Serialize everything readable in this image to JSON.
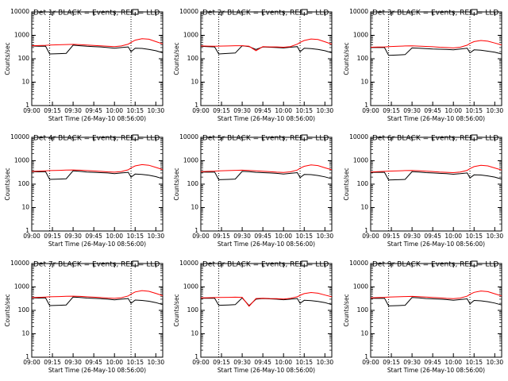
{
  "chart_data": {
    "type": "line",
    "y_scale": "log",
    "ylim": [
      1,
      10000
    ],
    "xlim": [
      "09:00",
      "10:35"
    ],
    "ylabel": "Counts/sec",
    "xlabel": "Start Time (26-May-10 08:56:00)",
    "x_tick_labels": [
      "09:00",
      "09:15",
      "09:30",
      "09:45",
      "10:00",
      "10:15",
      "10:30"
    ],
    "y_tick_labels": [
      "1",
      "10",
      "100",
      "1000",
      "10000"
    ],
    "vertical_markers": [
      "09:13",
      "10:12"
    ],
    "colors": {
      "events": "#000000",
      "lld": "#ff0000",
      "markers": "#000000"
    },
    "x_times": [
      "09:00",
      "09:05",
      "09:10",
      "09:13",
      "09:20",
      "09:25",
      "09:30",
      "09:35",
      "09:40",
      "09:45",
      "09:50",
      "09:55",
      "10:00",
      "10:05",
      "10:10",
      "10:12",
      "10:15",
      "10:20",
      "10:25",
      "10:30",
      "10:35"
    ],
    "panels": [
      {
        "title": "Det 1r BLACK = Events, RED = LLD",
        "series": [
          {
            "name": "Events",
            "color": "#000000",
            "values": [
              350,
              340,
              345,
              160,
              165,
              170,
              380,
              360,
              340,
              330,
              320,
              300,
              280,
              300,
              320,
              200,
              280,
              275,
              250,
              220,
              180
            ]
          },
          {
            "name": "LLD",
            "color": "#ff0000",
            "values": [
              360,
              365,
              375,
              385,
              395,
              405,
              410,
              400,
              385,
              370,
              355,
              340,
              330,
              350,
              420,
              500,
              620,
              720,
              680,
              540,
              430
            ]
          }
        ]
      },
      {
        "title": "Det 2r BLACK = Events, RED = LLD",
        "series": [
          {
            "name": "Events",
            "color": "#000000",
            "values": [
              340,
              330,
              320,
              160,
              170,
              175,
              360,
              330,
              250,
              320,
              310,
              300,
              290,
              310,
              330,
              200,
              280,
              270,
              250,
              220,
              180
            ]
          },
          {
            "name": "LLD",
            "color": "#ff0000",
            "values": [
              350,
              345,
              340,
              345,
              350,
              360,
              360,
              340,
              220,
              330,
              320,
              320,
              310,
              330,
              420,
              500,
              600,
              700,
              660,
              530,
              420
            ]
          }
        ]
      },
      {
        "title": "Det 3r BLACK = Events, RED = LLD",
        "series": [
          {
            "name": "Events",
            "color": "#000000",
            "values": [
              300,
              300,
              300,
              140,
              145,
              150,
              290,
              280,
              270,
              260,
              255,
              250,
              240,
              260,
              280,
              180,
              240,
              230,
              210,
              190,
              160
            ]
          },
          {
            "name": "LLD",
            "color": "#ff0000",
            "values": [
              310,
              315,
              320,
              330,
              340,
              350,
              355,
              345,
              335,
              325,
              310,
              300,
              290,
              310,
              380,
              450,
              540,
              600,
              560,
              470,
              390
            ]
          }
        ]
      },
      {
        "title": "Det 4r BLACK = Events, RED = LLD",
        "series": [
          {
            "name": "Events",
            "color": "#000000",
            "values": [
              340,
              335,
              340,
              160,
              165,
              170,
              370,
              350,
              330,
              320,
              310,
              300,
              280,
              300,
              320,
              200,
              270,
              260,
              240,
              210,
              170
            ]
          },
          {
            "name": "LLD",
            "color": "#ff0000",
            "values": [
              350,
              360,
              370,
              380,
              390,
              400,
              405,
              395,
              380,
              365,
              350,
              335,
              325,
              345,
              410,
              490,
              600,
              680,
              640,
              520,
              420
            ]
          }
        ]
      },
      {
        "title": "Det 5r BLACK = Events, RED = LLD",
        "series": [
          {
            "name": "Events",
            "color": "#000000",
            "values": [
              330,
              325,
              330,
              155,
              160,
              165,
              350,
              340,
              320,
              310,
              300,
              290,
              270,
              290,
              310,
              190,
              260,
              255,
              235,
              205,
              170
            ]
          },
          {
            "name": "LLD",
            "color": "#ff0000",
            "values": [
              340,
              350,
              360,
              370,
              380,
              390,
              395,
              385,
              370,
              355,
              340,
              325,
              315,
              335,
              400,
              480,
              580,
              660,
              620,
              500,
              410
            ]
          }
        ]
      },
      {
        "title": "Det 6r BLACK = Events, RED = LLD",
        "series": [
          {
            "name": "Events",
            "color": "#000000",
            "values": [
              320,
              320,
              320,
              150,
              155,
              160,
              340,
              330,
              310,
              300,
              290,
              280,
              265,
              280,
              300,
              185,
              250,
              245,
              225,
              200,
              165
            ]
          },
          {
            "name": "LLD",
            "color": "#ff0000",
            "values": [
              330,
              340,
              350,
              360,
              370,
              380,
              385,
              375,
              360,
              345,
              330,
              320,
              310,
              330,
              390,
              460,
              560,
              640,
              600,
              490,
              400
            ]
          }
        ]
      },
      {
        "title": "Det 7r BLACK = Events, RED = LLD",
        "series": [
          {
            "name": "Events",
            "color": "#000000",
            "values": [
              340,
              335,
              340,
              160,
              165,
              170,
              370,
              355,
              335,
              325,
              315,
              300,
              280,
              300,
              320,
              200,
              275,
              265,
              245,
              215,
              175
            ]
          },
          {
            "name": "LLD",
            "color": "#ff0000",
            "values": [
              350,
              360,
              370,
              380,
              390,
              400,
              405,
              395,
              380,
              365,
              350,
              335,
              325,
              345,
              415,
              495,
              610,
              700,
              650,
              530,
              425
            ]
          }
        ]
      },
      {
        "title": "Det 8r BLACK = Events, RED = LLD",
        "series": [
          {
            "name": "Events",
            "color": "#000000",
            "values": [
              330,
              330,
              330,
              165,
              170,
              175,
              340,
              160,
              300,
              320,
              310,
              300,
              285,
              300,
              320,
              200,
              270,
              260,
              240,
              215,
              175
            ]
          },
          {
            "name": "LLD",
            "color": "#ff0000",
            "values": [
              340,
              345,
              350,
              355,
              360,
              365,
              360,
              150,
              320,
              330,
              320,
              315,
              305,
              325,
              380,
              440,
              520,
              580,
              540,
              450,
              380
            ]
          }
        ]
      },
      {
        "title": "Det 9r BLACK = Events, RED = LLD",
        "series": [
          {
            "name": "Events",
            "color": "#000000",
            "values": [
              330,
              325,
              330,
              155,
              160,
              165,
              355,
              340,
              320,
              310,
              300,
              290,
              270,
              290,
              310,
              190,
              265,
              255,
              235,
              205,
              170
            ]
          },
          {
            "name": "LLD",
            "color": "#ff0000",
            "values": [
              340,
              350,
              360,
              370,
              380,
              390,
              395,
              385,
              370,
              355,
              340,
              325,
              315,
              335,
              405,
              485,
              590,
              670,
              630,
              510,
              415
            ]
          }
        ]
      }
    ]
  }
}
